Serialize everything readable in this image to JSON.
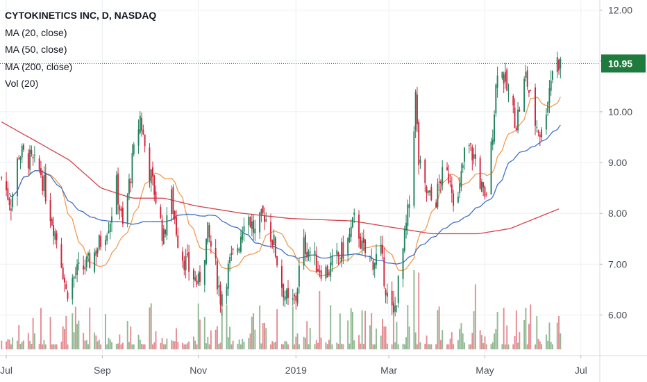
{
  "chart_data": {
    "type": "candlestick",
    "symbol_line": "CYTOKINETICS INC, D, NASDAQ",
    "indicators": [
      "MA (20, close)",
      "MA (50, close)",
      "MA (200, close)",
      "Vol (20)"
    ],
    "last_price_label": "10.95",
    "last_price": 10.95,
    "y_ticks": [
      "12.00",
      "11.00",
      "10.00",
      "9.00",
      "8.00",
      "7.00",
      "6.00"
    ],
    "y_range": [
      5.2,
      12.2
    ],
    "x_ticks": [
      "Jul",
      "Sep",
      "Nov",
      "2019",
      "Mar",
      "May",
      "Jul"
    ],
    "x_tick_days": [
      0,
      61,
      122,
      184,
      243,
      304,
      365
    ],
    "x_range_days": [
      -4,
      377
    ],
    "grid": true,
    "colors": {
      "up": "#22825e",
      "down": "#d2243a",
      "vol_up": "#8fb993",
      "vol_down": "#e48c92",
      "ma20": "#f39a51",
      "ma50": "#3f6fc6",
      "ma200": "#d3434b",
      "last_price_badge": "#1f7a3e",
      "grid": "#eceff3"
    },
    "price_anchors": [
      [
        -3,
        8.7
      ],
      [
        3,
        8.2
      ],
      [
        8,
        9.2
      ],
      [
        15,
        9.05
      ],
      [
        22,
        8.8
      ],
      [
        28,
        8.0
      ],
      [
        34,
        7.3
      ],
      [
        38,
        6.45
      ],
      [
        44,
        6.8
      ],
      [
        52,
        7.0
      ],
      [
        60,
        7.45
      ],
      [
        66,
        7.9
      ],
      [
        70,
        8.55
      ],
      [
        74,
        7.7
      ],
      [
        80,
        9.0
      ],
      [
        85,
        9.9
      ],
      [
        90,
        8.95
      ],
      [
        94,
        8.45
      ],
      [
        100,
        7.5
      ],
      [
        104,
        8.5
      ],
      [
        110,
        7.3
      ],
      [
        116,
        6.9
      ],
      [
        122,
        6.6
      ],
      [
        128,
        7.6
      ],
      [
        132,
        7.1
      ],
      [
        136,
        6.35
      ],
      [
        142,
        7.0
      ],
      [
        148,
        7.45
      ],
      [
        152,
        8.1
      ],
      [
        158,
        7.6
      ],
      [
        164,
        8.0
      ],
      [
        170,
        7.4
      ],
      [
        175,
        6.6
      ],
      [
        180,
        6.1
      ],
      [
        184,
        6.35
      ],
      [
        188,
        7.4
      ],
      [
        193,
        7.25
      ],
      [
        198,
        6.95
      ],
      [
        204,
        6.85
      ],
      [
        210,
        7.1
      ],
      [
        216,
        7.35
      ],
      [
        222,
        7.95
      ],
      [
        226,
        7.3
      ],
      [
        232,
        7.05
      ],
      [
        238,
        7.2
      ],
      [
        242,
        6.35
      ],
      [
        246,
        5.95
      ],
      [
        250,
        6.8
      ],
      [
        256,
        8.2
      ],
      [
        260,
        10.3
      ],
      [
        262,
        9.0
      ],
      [
        266,
        8.45
      ],
      [
        272,
        8.15
      ],
      [
        276,
        8.7
      ],
      [
        282,
        8.75
      ],
      [
        286,
        8.0
      ],
      [
        292,
        9.4
      ],
      [
        298,
        9.05
      ],
      [
        304,
        8.2
      ],
      [
        308,
        9.25
      ],
      [
        312,
        10.9
      ],
      [
        316,
        10.7
      ],
      [
        320,
        10.15
      ],
      [
        324,
        9.8
      ],
      [
        330,
        10.7
      ],
      [
        336,
        9.8
      ],
      [
        340,
        9.55
      ],
      [
        344,
        10.3
      ],
      [
        348,
        11.05
      ],
      [
        352,
        10.95
      ]
    ],
    "ma200_anchors": [
      [
        -3,
        9.8
      ],
      [
        20,
        9.4
      ],
      [
        40,
        9.05
      ],
      [
        60,
        8.5
      ],
      [
        80,
        8.3
      ],
      [
        100,
        8.3
      ],
      [
        120,
        8.15
      ],
      [
        150,
        8.0
      ],
      [
        180,
        7.9
      ],
      [
        220,
        7.85
      ],
      [
        250,
        7.7
      ],
      [
        270,
        7.6
      ],
      [
        300,
        7.6
      ],
      [
        320,
        7.7
      ],
      [
        340,
        7.95
      ],
      [
        352,
        8.1
      ]
    ]
  }
}
